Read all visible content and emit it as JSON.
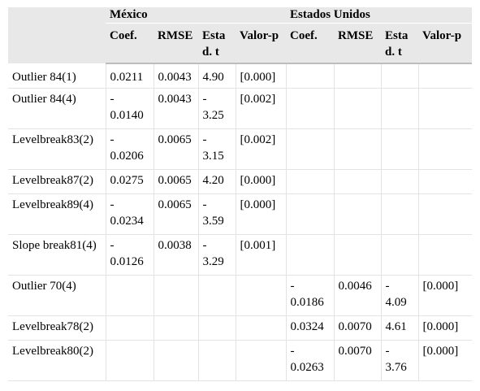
{
  "table": {
    "groups": [
      "México",
      "Estados Unidos"
    ],
    "columns": [
      "Coef.",
      "RMSE",
      "Estad. t",
      "Valor-p",
      "Coef.",
      "RMSE",
      "Estad. t",
      "Valor-p"
    ],
    "rows": [
      {
        "label": "Outlier 84(1)",
        "cells": [
          "0.0211",
          "0.0043",
          "4.90",
          "[0.000]",
          "",
          "",
          "",
          ""
        ]
      },
      {
        "label": "Outlier 84(4)",
        "cells": [
          "- 0.0140",
          "0.0043",
          "- 3.25",
          "[0.002]",
          "",
          "",
          "",
          ""
        ]
      },
      {
        "label": "Levelbreak83(2)",
        "cells": [
          "- 0.0206",
          "0.0065",
          "- 3.15",
          "[0.002]",
          "",
          "",
          "",
          ""
        ]
      },
      {
        "label": "Levelbreak87(2)",
        "cells": [
          "0.0275",
          "0.0065",
          "4.20",
          "[0.000]",
          "",
          "",
          "",
          ""
        ]
      },
      {
        "label": "Levelbreak89(4)",
        "cells": [
          "- 0.0234",
          "0.0065",
          "- 3.59",
          "[0.000]",
          "",
          "",
          "",
          ""
        ]
      },
      {
        "label": "Slope break81(4)",
        "cells": [
          "- 0.0126",
          "0.0038",
          "- 3.29",
          "[0.001]",
          "",
          "",
          "",
          ""
        ]
      },
      {
        "label": "Outlier 70(4)",
        "cells": [
          "",
          "",
          "",
          "",
          "- 0.0186",
          "0.0046",
          "- 4.09",
          "[0.000]"
        ]
      },
      {
        "label": "Levelbreak78(2)",
        "cells": [
          "",
          "",
          "",
          "",
          "0.0324",
          "0.0070",
          "4.61",
          "[0.000]"
        ]
      },
      {
        "label": "Levelbreak80(2)",
        "cells": [
          "",
          "",
          "",
          "",
          "- 0.0263",
          "0.0070",
          "- 3.76",
          "[0.000]"
        ]
      }
    ]
  }
}
